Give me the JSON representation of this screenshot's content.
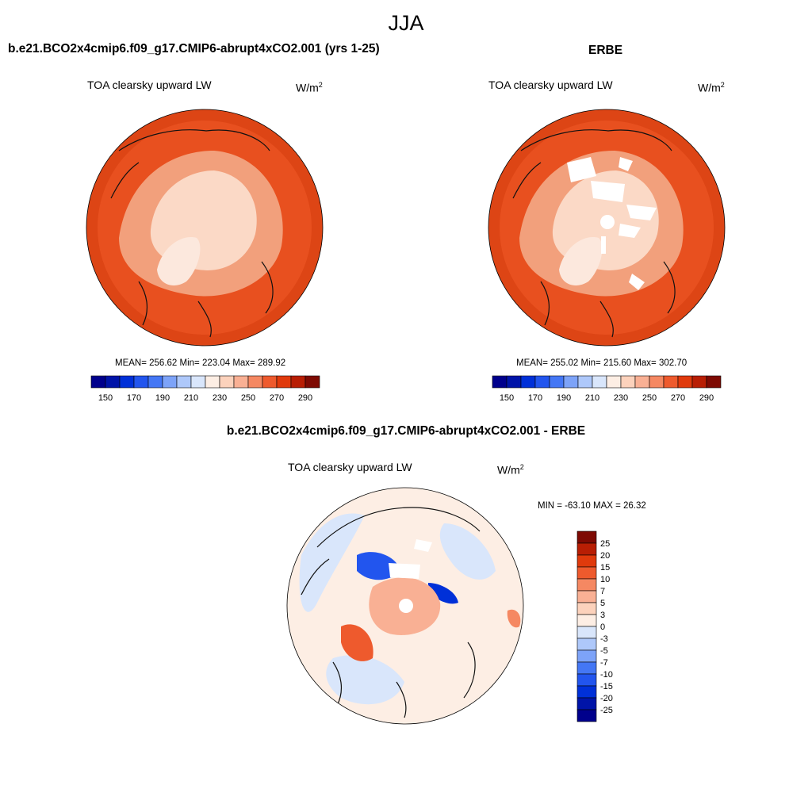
{
  "figure": {
    "title": "JJA",
    "colors": {
      "ocean": "#e8501f",
      "ocean_edge": "#dd4515",
      "landmass": "#f2a07c",
      "arctic": "#fbd9c6",
      "greenland": "#fce8dd",
      "coast": "#111111"
    }
  },
  "panels": [
    {
      "title": "b.e21.BCO2x4cmip6.f09_g17.CMIP6-abrupt4xCO2.001 (yrs 1-25)",
      "field": "TOA clearsky upward LW",
      "unit_base": "W/m",
      "unit_exp": "2",
      "stats": "MEAN= 256.62  Min= 223.04  Max= 289.92"
    },
    {
      "title": "ERBE",
      "field": "TOA clearsky upward LW",
      "unit_base": "W/m",
      "unit_exp": "2",
      "stats": "MEAN= 255.02  Min= 215.60  Max= 302.70"
    },
    {
      "title": "b.e21.BCO2x4cmip6.f09_g17.CMIP6-abrupt4xCO2.001 - ERBE",
      "field": "TOA clearsky upward LW",
      "unit_base": "W/m",
      "unit_exp": "2",
      "stats": "MIN = -63.10 MAX =  26.32"
    }
  ],
  "chart_data": [
    {
      "type": "heatmap",
      "projection": "north polar stereographic",
      "title": "b.e21.BCO2x4cmip6.f09_g17.CMIP6-abrupt4xCO2.001 (yrs 1-25)",
      "variable": "TOA clearsky upward LW",
      "units": "W/m2",
      "mean": 256.62,
      "min": 223.04,
      "max": 289.92,
      "colorbar": {
        "orientation": "horizontal",
        "levels": [
          150,
          160,
          170,
          180,
          190,
          200,
          210,
          220,
          230,
          240,
          250,
          260,
          270,
          280,
          290
        ],
        "tick_labels": [
          "150",
          "170",
          "190",
          "210",
          "230",
          "250",
          "270",
          "290"
        ],
        "colors": [
          "#00008c",
          "#0014a8",
          "#0030d8",
          "#2255ee",
          "#4477f5",
          "#7da3f8",
          "#aec8fa",
          "#d9e6fb",
          "#fdeee4",
          "#fcd2bc",
          "#f9b094",
          "#f58862",
          "#ee5a2d",
          "#e03a0c",
          "#b81e04",
          "#7e0a03"
        ]
      }
    },
    {
      "type": "heatmap",
      "projection": "north polar stereographic",
      "title": "ERBE",
      "variable": "TOA clearsky upward LW",
      "units": "W/m2",
      "mean": 255.02,
      "min": 215.6,
      "max": 302.7,
      "colorbar": {
        "orientation": "horizontal",
        "levels": [
          150,
          160,
          170,
          180,
          190,
          200,
          210,
          220,
          230,
          240,
          250,
          260,
          270,
          280,
          290
        ],
        "tick_labels": [
          "150",
          "170",
          "190",
          "210",
          "230",
          "250",
          "270",
          "290"
        ],
        "colors": [
          "#00008c",
          "#0014a8",
          "#0030d8",
          "#2255ee",
          "#4477f5",
          "#7da3f8",
          "#aec8fa",
          "#d9e6fb",
          "#fdeee4",
          "#fcd2bc",
          "#f9b094",
          "#f58862",
          "#ee5a2d",
          "#e03a0c",
          "#b81e04",
          "#7e0a03"
        ]
      }
    },
    {
      "type": "heatmap",
      "projection": "north polar stereographic",
      "title": "b.e21.BCO2x4cmip6.f09_g17.CMIP6-abrupt4xCO2.001 - ERBE",
      "variable": "TOA clearsky upward LW",
      "units": "W/m2",
      "min": -63.1,
      "max": 26.32,
      "colorbar": {
        "orientation": "vertical",
        "levels": [
          -25,
          -20,
          -15,
          -10,
          -7,
          -5,
          -3,
          0,
          3,
          5,
          7,
          10,
          15,
          20,
          25
        ],
        "tick_labels": [
          "-25",
          "-20",
          "-15",
          "-10",
          "-7",
          "-5",
          "-3",
          "0",
          "3",
          "5",
          "7",
          "10",
          "15",
          "20",
          "25"
        ],
        "colors": [
          "#00008c",
          "#0014a8",
          "#0030d8",
          "#2255ee",
          "#4477f5",
          "#7da3f8",
          "#aec8fa",
          "#d9e6fb",
          "#fdeee4",
          "#fcd2bc",
          "#f9b094",
          "#f58862",
          "#ee5a2d",
          "#e03a0c",
          "#b81e04",
          "#7e0a03"
        ]
      }
    }
  ]
}
